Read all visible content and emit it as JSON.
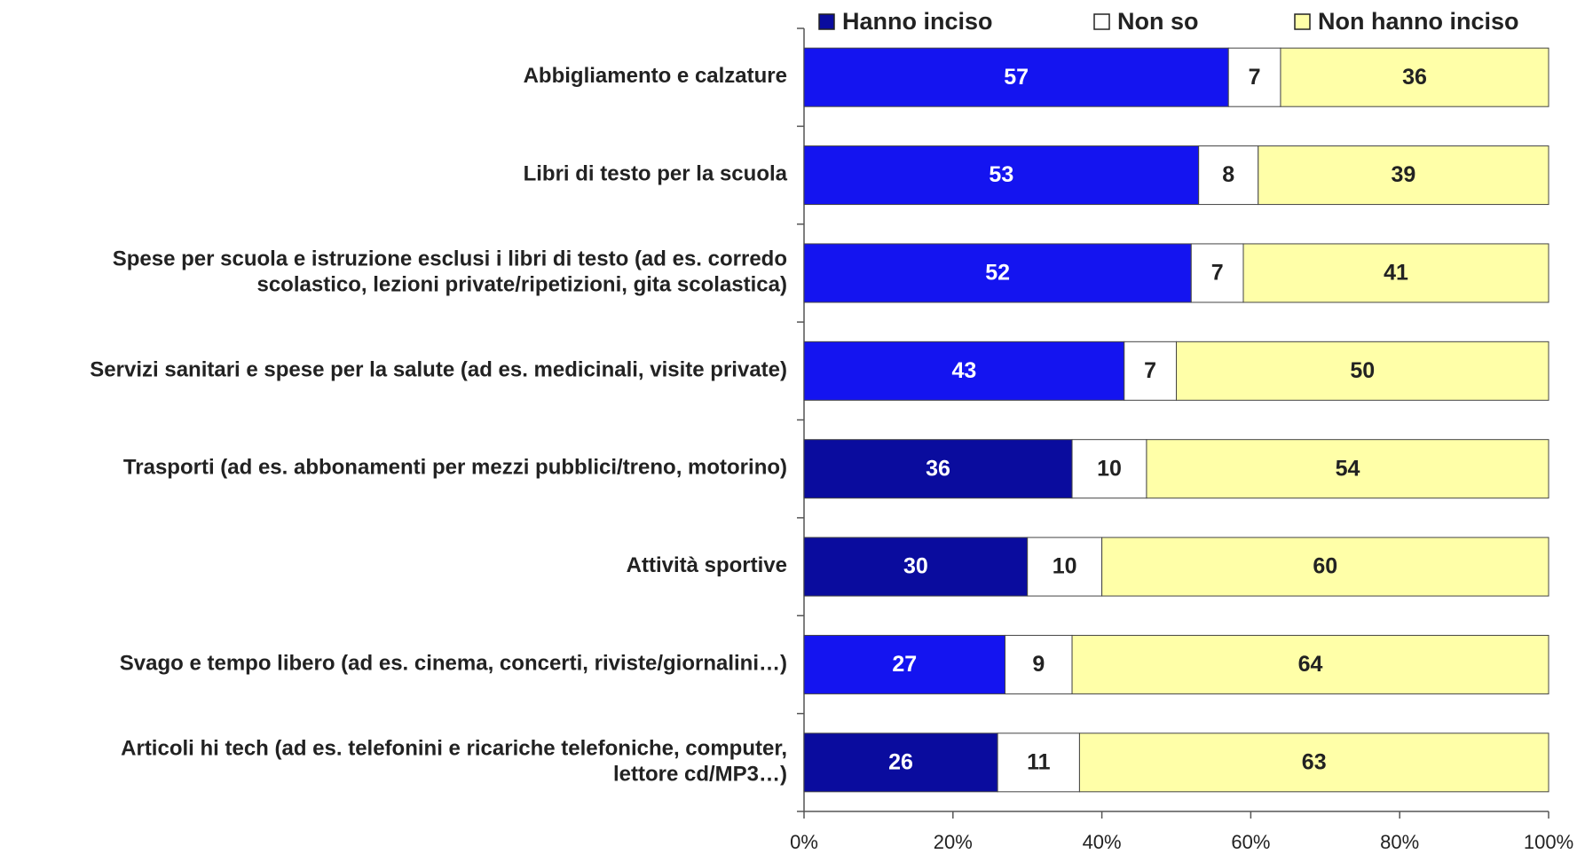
{
  "chart_data": {
    "type": "stacked_bar_horizontal",
    "categories": [
      "Abbigliamento e calzature",
      "Libri di testo per la scuola",
      "Spese per scuola e istruzione esclusi i libri di testo (ad es. corredo\nscolastico, lezioni private/ripetizioni, gita scolastica)",
      "Servizi sanitari e spese per la salute (ad es. medicinali, visite private)",
      "Trasporti (ad es. abbonamenti per mezzi pubblici/treno, motorino)",
      "Attività sportive",
      "Svago e tempo libero (ad es. cinema, concerti, riviste/giornalini…)",
      "Articoli hi tech (ad es. telefonini e ricariche telefoniche, computer,\nlettore cd/MP3…)"
    ],
    "series": [
      {
        "name": "Hanno inciso",
        "color": "#0a0c9e",
        "point_colors": [
          "#1414f0",
          "#1414f0",
          "#1414f0",
          "#1414f0",
          "#0a0c9e",
          "#0a0c9e",
          "#1414f0",
          "#0a0c9e"
        ],
        "values": [
          57,
          53,
          52,
          43,
          36,
          30,
          27,
          26
        ]
      },
      {
        "name": "Non so",
        "color": "#ffffff",
        "values": [
          7,
          8,
          7,
          7,
          10,
          10,
          9,
          11
        ]
      },
      {
        "name": "Non hanno inciso",
        "color": "#ffffa8",
        "values": [
          36,
          39,
          41,
          50,
          54,
          60,
          64,
          63
        ]
      }
    ],
    "xlim": [
      0,
      100
    ],
    "xticks": [
      {
        "value": 0,
        "label": "0%"
      },
      {
        "value": 20,
        "label": "20%"
      },
      {
        "value": 40,
        "label": "40%"
      },
      {
        "value": 60,
        "label": "60%"
      },
      {
        "value": 80,
        "label": "80%"
      },
      {
        "value": 100,
        "label": "100%"
      }
    ],
    "legend": "top"
  }
}
